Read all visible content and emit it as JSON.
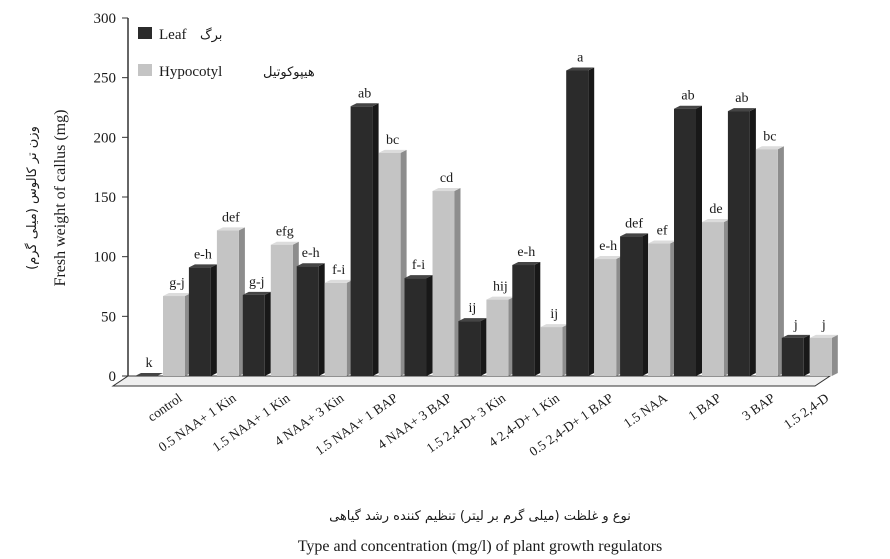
{
  "chart_data": {
    "type": "bar",
    "style": "3d-clustered",
    "categories": [
      "control",
      "0.5 NAA+ 1 Kin",
      "1.5 NAA+ 1 Kin",
      "4 NAA+ 3 Kin",
      "1.5 NAA+ 1 BAP",
      "4 NAA+ 3 BAP",
      "1.5 2,4-D+ 3 Kin",
      "4 2,4-D+ 1 Kin",
      "0.5 2,4-D+ 1 BAP",
      "1.5 NAA",
      "1 BAP",
      "3 BAP",
      "1.5 2,4-D"
    ],
    "series": [
      {
        "name": "Leaf",
        "name_fa": "برگ",
        "color": "#2b2b2b",
        "values": [
          0,
          91,
          68,
          92,
          226,
          82,
          46,
          93,
          256,
          117,
          224,
          222,
          32
        ],
        "labels": [
          "k",
          "e-h",
          "g-j",
          "e-h",
          "ab",
          "f-i",
          "ij",
          "e-h",
          "a",
          "def",
          "ab",
          "ab",
          "j"
        ]
      },
      {
        "name": "Hypocotyl",
        "name_fa": "هیپوکوتیل",
        "color": "#c4c4c4",
        "values": [
          67,
          122,
          110,
          78,
          187,
          155,
          64,
          41,
          98,
          111,
          129,
          190,
          32
        ],
        "labels": [
          "g-j",
          "def",
          "efg",
          "f-i",
          "bc",
          "cd",
          "hij",
          "ij",
          "e-h",
          "ef",
          "de",
          "bc",
          "j"
        ]
      }
    ],
    "yticks": [
      0,
      50,
      100,
      150,
      200,
      250,
      300
    ],
    "ylim": [
      0,
      300
    ],
    "ylabel": "Fresh weight of callus (mg)",
    "ylabel_fa": "وزن تر کالوس (میلی گرم)",
    "xlabel": "Type and concentration (mg/l) of plant growth regulators",
    "xlabel_fa": "نوع و غلظت (میلی گرم بر لیتر) تنظیم کننده رشد گیاهی",
    "legend_position": "top-left",
    "grid": false
  }
}
